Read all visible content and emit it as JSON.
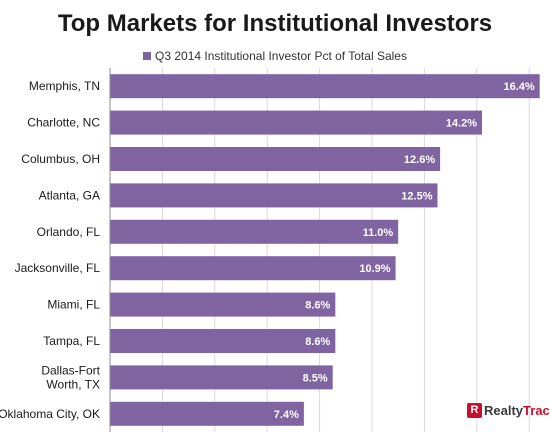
{
  "chart_data": {
    "type": "bar",
    "orientation": "horizontal",
    "title": "Top Markets for Institutional Investors",
    "legend_position": "top",
    "xlim": [
      0,
      17
    ],
    "grid": true,
    "categories": [
      "Memphis, TN",
      "Charlotte, NC",
      "Columbus, OH",
      "Atlanta, GA",
      "Orlando, FL",
      "Jacksonville, FL",
      "Miami, FL",
      "Tampa, FL",
      "Dallas-Fort Worth, TX",
      "Oklahoma City, OK"
    ],
    "category_lines": [
      [
        "Memphis, TN"
      ],
      [
        "Charlotte, NC"
      ],
      [
        "Columbus, OH"
      ],
      [
        "Atlanta, GA"
      ],
      [
        "Orlando, FL"
      ],
      [
        "Jacksonville, FL"
      ],
      [
        "Miami, FL"
      ],
      [
        "Tampa, FL"
      ],
      [
        "Dallas-Fort",
        "Worth, TX"
      ],
      [
        "Oklahoma City, OK"
      ]
    ],
    "series": [
      {
        "name": "Q3 2014 Institutional Investor Pct of Total Sales",
        "color": "#8064a2",
        "values": [
          16.4,
          14.2,
          12.6,
          12.5,
          11.0,
          10.9,
          8.6,
          8.6,
          8.5,
          7.4
        ],
        "data_labels": [
          "16.4%",
          "14.2%",
          "12.6%",
          "12.5%",
          "11.0%",
          "10.9%",
          "8.6%",
          "8.6%",
          "8.5%",
          "7.4%"
        ]
      }
    ]
  },
  "logo": {
    "prefix": "Realty",
    "accent": "Trac",
    "mark": "R",
    "accent_color": "#c8102e"
  }
}
